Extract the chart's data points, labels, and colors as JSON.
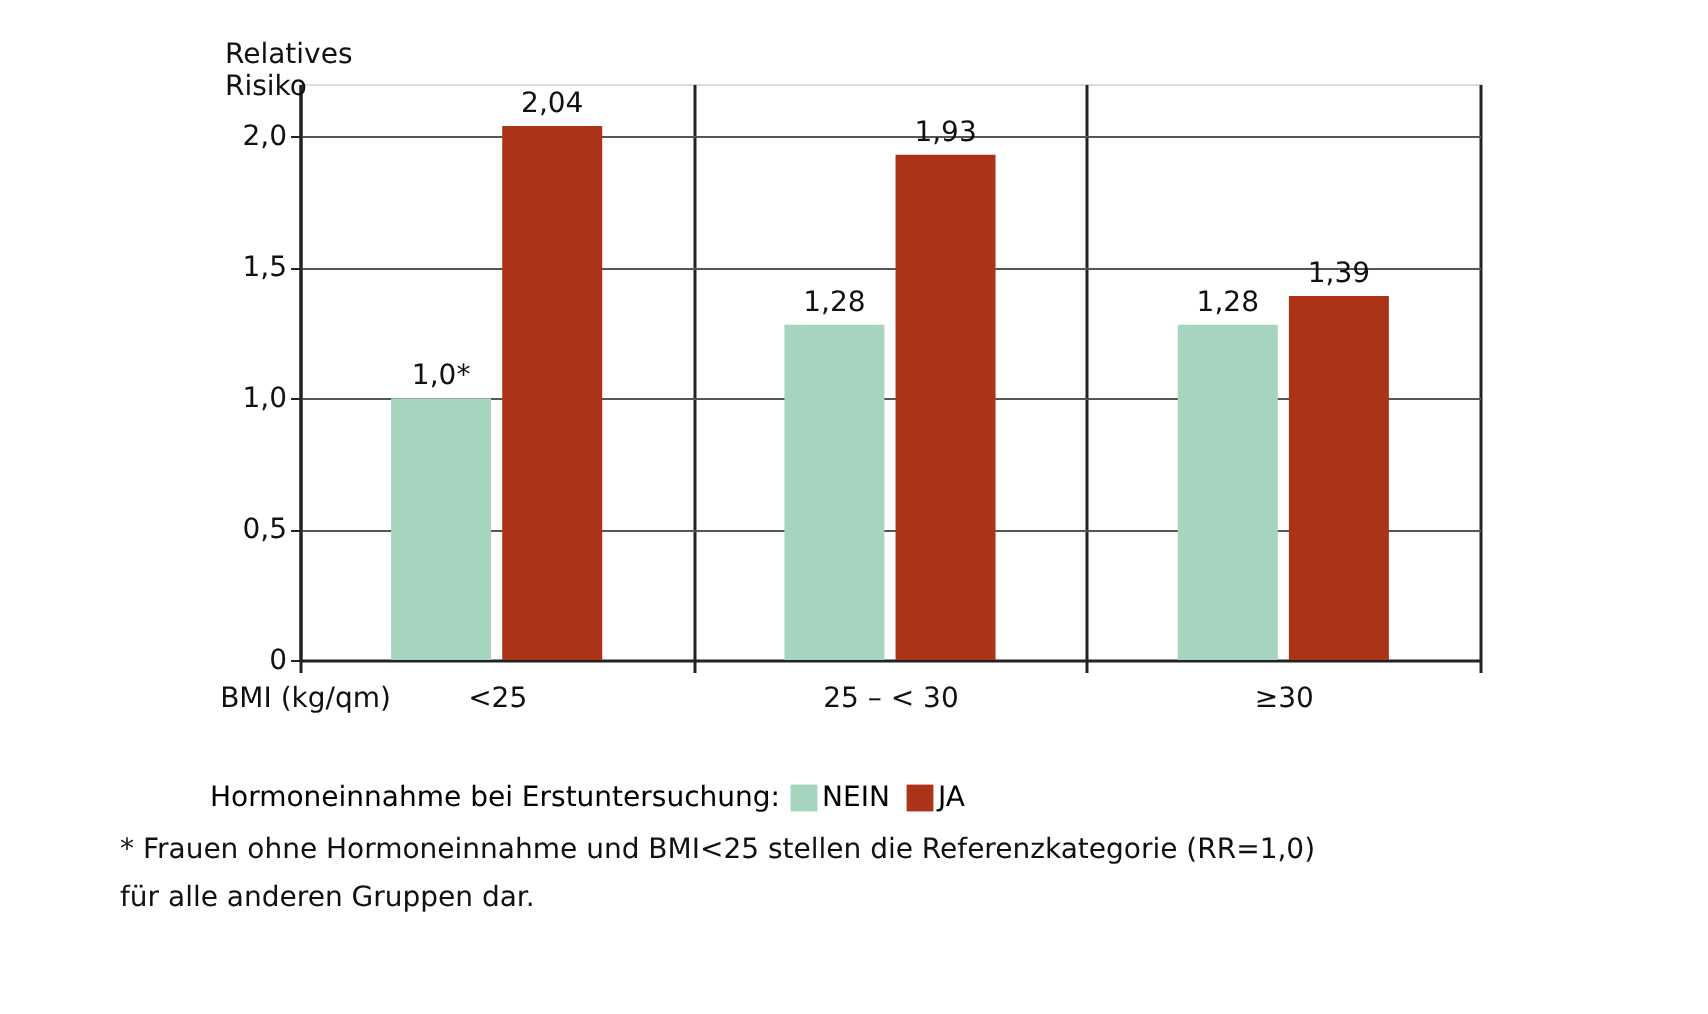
{
  "chart_data": {
    "type": "bar",
    "ylabel": "Relatives Risiko",
    "xlabel": "BMI (kg/qm)",
    "legend_title": "Hormoneinnahme bei Erstuntersuchung:",
    "categories": [
      "<25",
      "25 – < 30",
      "≥30"
    ],
    "series": [
      {
        "name": "NEIN",
        "color": "#a6d5bf",
        "values": [
          1.0,
          1.28,
          1.28
        ],
        "value_labels": [
          "1,0*",
          "1,28",
          "1,28"
        ]
      },
      {
        "name": "JA",
        "color": "#aa3318",
        "values": [
          2.04,
          1.93,
          1.39
        ],
        "value_labels": [
          "2,04",
          "1,93",
          "1,39"
        ]
      }
    ],
    "ylim": [
      0,
      2.2
    ],
    "yticks": [
      {
        "value": 0,
        "label": "0"
      },
      {
        "value": 0.5,
        "label": "0,5"
      },
      {
        "value": 1.0,
        "label": "1,0"
      },
      {
        "value": 1.5,
        "label": "1,5"
      },
      {
        "value": 2.0,
        "label": "2,0"
      }
    ],
    "grid": true,
    "legend": "bottom left",
    "annotations": [
      "* Frauen ohne Hormoneinnahme und BMI<25 stellen die Referenzkategorie (RR=1,0) für alle anderen Gruppen dar."
    ]
  }
}
